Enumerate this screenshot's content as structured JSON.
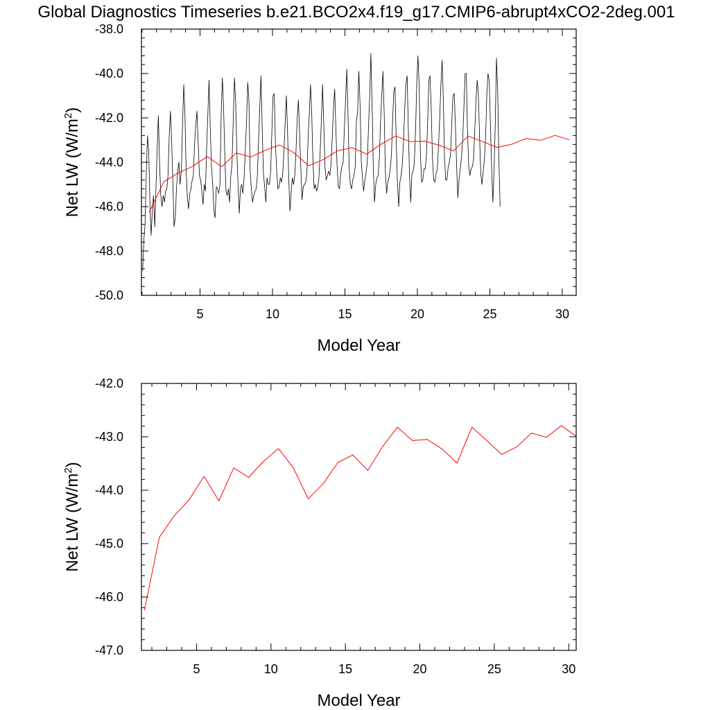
{
  "title": "Global Diagnostics Timeseries b.e21.BCO2x4.f19_g17.CMIP6-abrupt4xCO2-2deg.001",
  "colors": {
    "monthly": "#000000",
    "annual": "#ff0000"
  },
  "chart_data": [
    {
      "type": "line",
      "xlabel": "Model Year",
      "ylabel_text": "Net LW (W/m",
      "ylabel_sup": "2",
      "ylabel_close": ")",
      "xlim": [
        0.958,
        30.958
      ],
      "ylim": [
        -50.0,
        -38.0
      ],
      "xticks": [
        5,
        10,
        15,
        20,
        25,
        30
      ],
      "xtick_labels": [
        "5",
        "10",
        "15",
        "20",
        "25",
        "30"
      ],
      "yticks": [
        -50.0,
        -48.0,
        -46.0,
        -44.0,
        -42.0,
        -40.0,
        -38.0
      ],
      "ytick_labels": [
        "-50.0",
        "-48.0",
        "-46.0",
        "-44.0",
        "-42.0",
        "-40.0",
        "-38.0"
      ],
      "grid": false,
      "series": [
        {
          "kind": "monthly",
          "x_start": 1.0417,
          "x_step": 0.08333,
          "values": [
            -48.9,
            -47.5,
            -46.8,
            -44.5,
            -42.8,
            -43.5,
            -45.8,
            -47.3,
            -46.2,
            -45.5,
            -46.9,
            -45.2,
            -43.5,
            -41.9,
            -44.0,
            -45.5,
            -46.0,
            -45.5,
            -45.8,
            -45.3,
            -45.2,
            -44.6,
            -42.8,
            -41.7,
            -43.0,
            -44.8,
            -46.9,
            -46.5,
            -45.2,
            -44.4,
            -44.0,
            -45.0,
            -44.4,
            -42.4,
            -40.5,
            -41.8,
            -44.3,
            -45.6,
            -46.1,
            -45.4,
            -45.2,
            -44.8,
            -44.6,
            -43.2,
            -42.3,
            -41.7,
            -43.2,
            -44.6,
            -44.8,
            -45.3,
            -45.9,
            -45.0,
            -45.3,
            -43.3,
            -41.8,
            -40.3,
            -42.5,
            -44.2,
            -45.0,
            -46.2,
            -46.5,
            -45.1,
            -45.2,
            -45.4,
            -45.0,
            -41.8,
            -40.2,
            -41.5,
            -43.6,
            -45.3,
            -45.5,
            -45.2,
            -45.8,
            -44.6,
            -44.1,
            -42.1,
            -40.2,
            -41.3,
            -43.5,
            -45.0,
            -46.3,
            -45.2,
            -45.0,
            -45.4,
            -44.7,
            -43.5,
            -42.2,
            -40.4,
            -41.2,
            -44.4,
            -45.2,
            -45.8,
            -45.5,
            -45.3,
            -45.2,
            -44.6,
            -43.0,
            -41.5,
            -40.1,
            -42.5,
            -44.5,
            -45.1,
            -45.8,
            -44.7,
            -45.0,
            -45.0,
            -44.4,
            -42.6,
            -41.0,
            -40.9,
            -43.2,
            -44.4,
            -45.2,
            -45.1,
            -44.7,
            -44.9,
            -44.5,
            -43.5,
            -42.2,
            -41.0,
            -42.6,
            -44.8,
            -46.2,
            -45.3,
            -44.7,
            -45.0,
            -44.6,
            -43.5,
            -42.0,
            -41.2,
            -42.8,
            -44.3,
            -45.7,
            -45.1,
            -45.0,
            -44.9,
            -44.5,
            -43.0,
            -41.8,
            -40.5,
            -41.8,
            -43.9,
            -45.2,
            -45.0,
            -45.3,
            -45.1,
            -44.7,
            -43.5,
            -42.1,
            -40.5,
            -42.3,
            -44.2,
            -44.8,
            -44.6,
            -44.4,
            -44.6,
            -44.1,
            -42.9,
            -41.6,
            -40.7,
            -42.5,
            -44.1,
            -45.1,
            -45.2,
            -44.5,
            -44.2,
            -44.0,
            -42.5,
            -41.3,
            -39.8,
            -41.7,
            -44.3,
            -45.0,
            -45.2,
            -44.8,
            -44.6,
            -44.2,
            -42.2,
            -41.7,
            -39.9,
            -41.3,
            -43.9,
            -44.7,
            -45.3,
            -44.8,
            -44.5,
            -44.0,
            -42.5,
            -41.0,
            -39.1,
            -41.5,
            -44.2,
            -45.8,
            -45.0,
            -44.7,
            -44.6,
            -43.8,
            -42.2,
            -41.0,
            -39.9,
            -41.8,
            -44.4,
            -45.4,
            -44.9,
            -44.7,
            -44.3,
            -43.7,
            -42.1,
            -40.8,
            -40.6,
            -43.1,
            -44.9,
            -46.0,
            -44.9,
            -44.6,
            -44.1,
            -43.1,
            -41.6,
            -40.5,
            -40.1,
            -42.5,
            -44.6,
            -45.8,
            -44.5,
            -44.4,
            -44.0,
            -42.5,
            -40.4,
            -39.2,
            -40.6,
            -43.6,
            -44.9,
            -44.8,
            -44.3,
            -44.3,
            -43.7,
            -42.2,
            -40.3,
            -40.1,
            -41.7,
            -43.8,
            -44.8,
            -44.9,
            -44.5,
            -44.3,
            -43.3,
            -42.0,
            -40.5,
            -39.4,
            -41.2,
            -43.8,
            -44.8,
            -44.8,
            -44.2,
            -44.0,
            -43.6,
            -42.2,
            -41.0,
            -40.9,
            -42.3,
            -44.2,
            -45.6,
            -44.8,
            -44.3,
            -43.8,
            -43.0,
            -41.6,
            -40.0,
            -40.0,
            -42.5,
            -44.2,
            -44.6,
            -44.3,
            -44.2,
            -43.9,
            -42.6,
            -41.3,
            -40.3,
            -40.9,
            -42.9,
            -44.5,
            -45.0,
            -44.4,
            -43.9,
            -42.8,
            -41.0,
            -40.0,
            -40.3,
            -42.3,
            -44.3,
            -45.8,
            -44.3,
            -42.3,
            -39.3,
            -40.8,
            -43.9,
            -46.0
          ]
        },
        {
          "kind": "annual",
          "x": [
            1.5,
            2.5,
            3.5,
            4.5,
            5.5,
            6.5,
            7.5,
            8.5,
            9.5,
            10.5,
            11.5,
            12.5,
            13.5,
            14.5,
            15.5,
            16.5,
            17.5,
            18.5,
            19.5,
            20.5,
            21.5,
            22.5,
            23.5,
            24.5,
            25.5,
            26.5,
            27.5,
            28.5,
            29.5,
            30.5
          ],
          "values": [
            -46.25,
            -44.88,
            -44.48,
            -44.18,
            -43.74,
            -44.2,
            -43.58,
            -43.76,
            -43.46,
            -43.22,
            -43.58,
            -44.16,
            -43.88,
            -43.48,
            -43.34,
            -43.63,
            -43.18,
            -42.82,
            -43.07,
            -43.05,
            -43.23,
            -43.49,
            -42.82,
            -43.07,
            -43.33,
            -43.19,
            -42.93,
            -43.01,
            -42.79,
            -42.99
          ]
        }
      ]
    },
    {
      "type": "line",
      "xlabel": "Model Year",
      "ylabel_text": "Net LW (W/m",
      "ylabel_sup": "2",
      "ylabel_close": ")",
      "xlim": [
        1.3,
        30.5
      ],
      "ylim": [
        -47.0,
        -42.0
      ],
      "xticks": [
        5,
        10,
        15,
        20,
        25,
        30
      ],
      "xtick_labels": [
        "5",
        "10",
        "15",
        "20",
        "25",
        "30"
      ],
      "yticks": [
        -47.0,
        -46.0,
        -45.0,
        -44.0,
        -43.0,
        -42.0
      ],
      "ytick_labels": [
        "-47.0",
        "-46.0",
        "-45.0",
        "-44.0",
        "-43.0",
        "-42.0"
      ],
      "grid": false,
      "series": [
        {
          "kind": "annual",
          "x": [
            1.5,
            2.5,
            3.5,
            4.5,
            5.5,
            6.5,
            7.5,
            8.5,
            9.5,
            10.5,
            11.5,
            12.5,
            13.5,
            14.5,
            15.5,
            16.5,
            17.5,
            18.5,
            19.5,
            20.5,
            21.5,
            22.5,
            23.5,
            24.5,
            25.5,
            26.5,
            27.5,
            28.5,
            29.5,
            30.5
          ],
          "values": [
            -46.25,
            -44.88,
            -44.48,
            -44.18,
            -43.74,
            -44.2,
            -43.58,
            -43.76,
            -43.46,
            -43.22,
            -43.58,
            -44.16,
            -43.88,
            -43.48,
            -43.34,
            -43.63,
            -43.18,
            -42.82,
            -43.07,
            -43.05,
            -43.23,
            -43.49,
            -42.82,
            -43.07,
            -43.33,
            -43.19,
            -42.93,
            -43.01,
            -42.79,
            -42.99
          ]
        }
      ]
    }
  ]
}
